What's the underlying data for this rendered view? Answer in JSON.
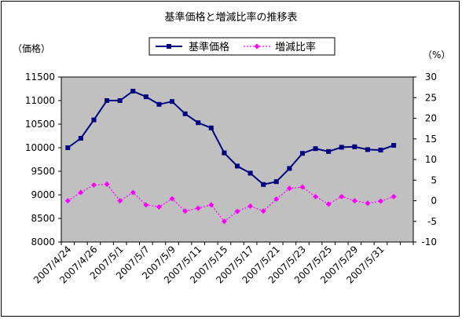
{
  "chart_data": {
    "type": "line",
    "title": "基準価格と増減比率の推移表",
    "y_left_label": "（価格）",
    "y_right_label": "（%）",
    "y_left_lim": [
      8000,
      11500
    ],
    "y_left_ticks": [
      8000,
      8500,
      9000,
      9500,
      10000,
      10500,
      11000,
      11500
    ],
    "y_right_lim": [
      -10,
      30
    ],
    "y_right_ticks": [
      -10,
      -5,
      0,
      5,
      10,
      15,
      20,
      25,
      30
    ],
    "x": [
      "2007/4/24",
      "2007/4/25",
      "2007/4/26",
      "2007/4/27",
      "2007/5/1",
      "2007/5/2",
      "2007/5/7",
      "2007/5/8",
      "2007/5/9",
      "2007/5/10",
      "2007/5/11",
      "2007/5/14",
      "2007/5/15",
      "2007/5/16",
      "2007/5/17",
      "2007/5/18",
      "2007/5/21",
      "2007/5/22",
      "2007/5/23",
      "2007/5/24",
      "2007/5/25",
      "2007/5/28",
      "2007/5/29",
      "2007/5/30",
      "2007/5/31",
      "2007/6/1",
      "2007/6/4"
    ],
    "x_tick_labels": [
      "2007/4/24",
      "2007/4/26",
      "2007/5/1",
      "2007/5/7",
      "2007/5/9",
      "2007/5/11",
      "2007/5/15",
      "2007/5/17",
      "2007/5/21",
      "2007/5/23",
      "2007/5/25",
      "2007/5/29",
      "2007/5/31"
    ],
    "grid": false,
    "plot_background": "#c0c0c0",
    "legend_position": "top-center",
    "series": [
      {
        "name": "基準価格",
        "axis": "left",
        "color": "#000080",
        "marker": "square",
        "line_style": "solid",
        "values": [
          10000,
          10200,
          10590,
          11000,
          11000,
          11200,
          11080,
          10920,
          10980,
          10720,
          10530,
          10420,
          9890,
          9610,
          9460,
          9220,
          9280,
          9560,
          9880,
          9980,
          9920,
          10010,
          10020,
          9960,
          9950,
          10050,
          null
        ]
      },
      {
        "name": "増減比率",
        "axis": "right",
        "color": "#ff00ff",
        "marker": "diamond",
        "line_style": "dotted",
        "values": [
          0,
          2,
          3.8,
          4,
          0,
          2,
          -1,
          -1.5,
          0.5,
          -2.5,
          -1.8,
          -1,
          -5,
          -2.6,
          -1.3,
          -2.5,
          0.4,
          3,
          3.3,
          1,
          -0.8,
          1,
          0,
          -0.6,
          -0.1,
          1,
          null
        ]
      }
    ]
  }
}
